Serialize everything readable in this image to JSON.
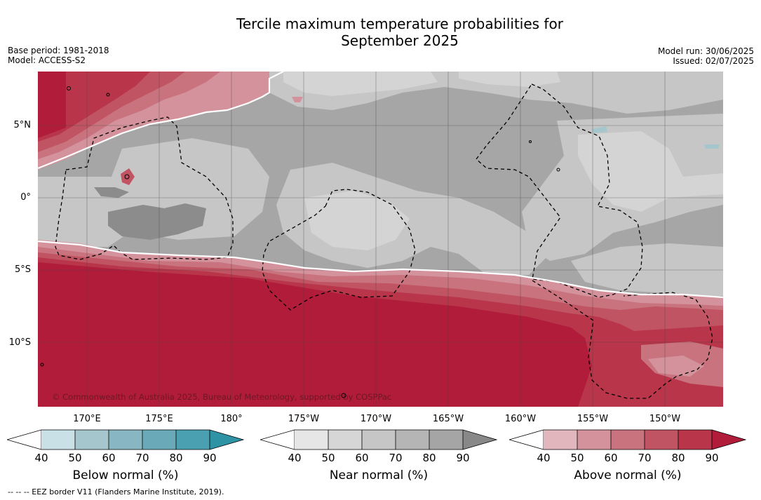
{
  "title_line1": "Tercile maximum temperature probabilities for",
  "title_line2": "September 2025",
  "base_period": "Base period: 1981-2018",
  "model": "Model: ACCESS-S2",
  "model_run": "Model run: 30/06/2025",
  "issued": "Issued: 02/07/2025",
  "lat_labels": [
    "5°N",
    "0°",
    "5°S",
    "10°S"
  ],
  "lon_labels": [
    "170°E",
    "175°E",
    "180°",
    "175°W",
    "170°W",
    "165°W",
    "160°W",
    "155°W",
    "150°W"
  ],
  "copyright": "© Commonwealth of Australia 2025, Bureau of Meteorology, supported by COSPPac",
  "footer": "--  --  -- EEZ border V11 (Flanders Marine Institute, 2019).",
  "colorbars": {
    "below": {
      "title": "Below normal (%)",
      "ticks": [
        "40",
        "50",
        "60",
        "70",
        "80",
        "90"
      ],
      "colors": [
        "#c8e0e6",
        "#a5c6cc",
        "#88b6c2",
        "#6aaab8",
        "#4aa0b0",
        "#2f93a6"
      ]
    },
    "near": {
      "title": "Near normal (%)",
      "ticks": [
        "40",
        "50",
        "60",
        "70",
        "80",
        "90"
      ],
      "colors": [
        "#e6e6e6",
        "#d6d6d6",
        "#c6c6c6",
        "#b5b5b5",
        "#a5a5a5",
        "#888888"
      ]
    },
    "above": {
      "title": "Above normal (%)",
      "ticks": [
        "40",
        "50",
        "60",
        "70",
        "80",
        "90"
      ],
      "colors": [
        "#e1b7bd",
        "#d4939c",
        "#c9737f",
        "#c05462",
        "#b8354a",
        "#b01c3a"
      ]
    }
  }
}
